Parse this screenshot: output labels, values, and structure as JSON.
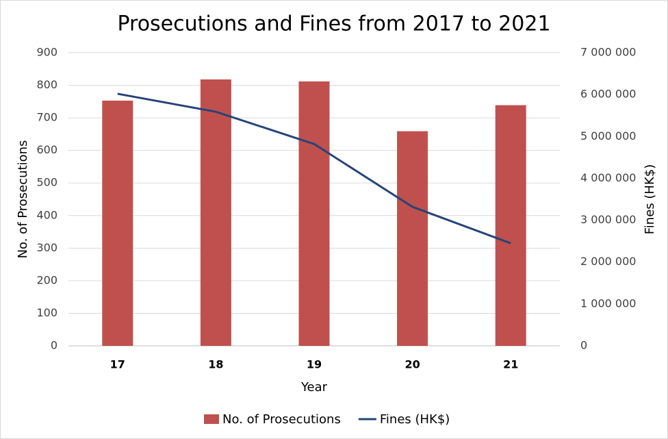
{
  "chart_data": {
    "type": "bar",
    "title": "Prosecutions and Fines from 2017 to 2021",
    "x_label": "Year",
    "y_label": "No. of Prosecutions",
    "y2_label": "Fines (HK$)",
    "categories": [
      "17",
      "18",
      "19",
      "20",
      "21"
    ],
    "series": [
      {
        "name": "No. of Prosecutions",
        "type": "bar",
        "color": "#c0504d",
        "values": [
          753,
          818,
          812,
          659,
          739
        ]
      },
      {
        "name": "Fines (HK$)",
        "type": "line",
        "axis": "y2",
        "color": "#264478",
        "values": [
          6020000,
          5590000,
          4820000,
          3320000,
          2450000
        ]
      }
    ],
    "ylim": [
      0,
      900
    ],
    "yticks": [
      0,
      100,
      200,
      300,
      400,
      500,
      600,
      700,
      800,
      900
    ],
    "y2lim": [
      0,
      7000000
    ],
    "y2ticks": [
      0,
      {
        "value": 1000000,
        "label": "1 000 000"
      },
      {
        "value": 2000000,
        "label": "2 000 000"
      },
      {
        "value": 3000000,
        "label": "3 000 000"
      },
      {
        "value": 4000000,
        "label": "4 000 000"
      },
      {
        "value": 5000000,
        "label": "5 000 000"
      },
      {
        "value": 6000000,
        "label": "6 000 000"
      },
      {
        "value": 7000000,
        "label": "7 000 000"
      }
    ],
    "grid": true,
    "legend": "bottom"
  }
}
